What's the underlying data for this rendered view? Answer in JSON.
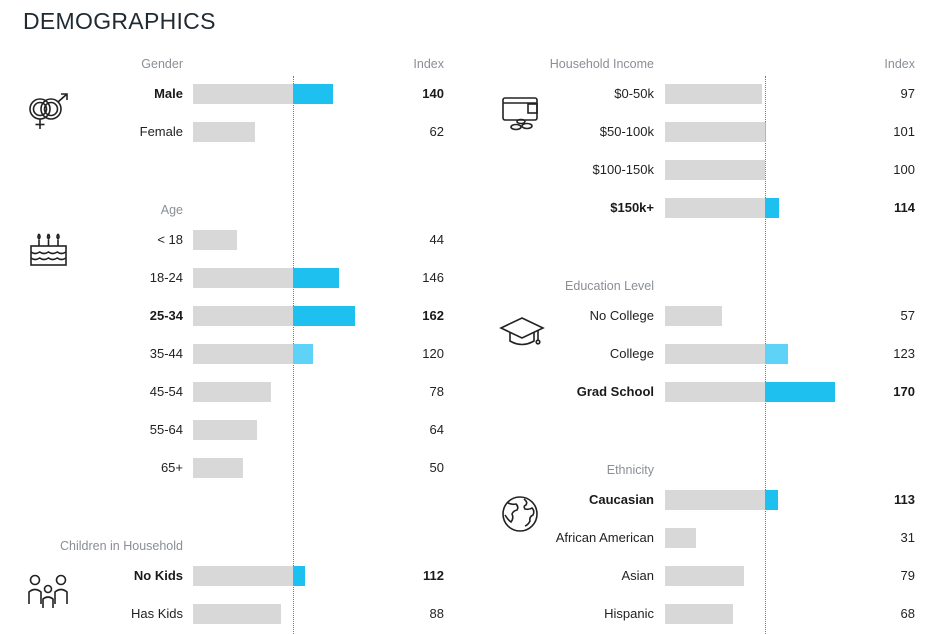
{
  "title": "DEMOGRAPHICS",
  "index_header": "Index",
  "colors": {
    "bar_gray": "#d8d8d8",
    "blue_strong": "#1ec0f0",
    "blue_light": "#5fd3f7",
    "baseline": "#7a7a7a"
  },
  "chart_data": {
    "type": "bar",
    "baseline": 100,
    "groups": [
      {
        "name": "Gender",
        "icon": "gender-icon",
        "rows": [
          {
            "label": "Male",
            "value": 140,
            "bold": true
          },
          {
            "label": "Female",
            "value": 62,
            "bold": false
          }
        ]
      },
      {
        "name": "Age",
        "icon": "birthday-cake-icon",
        "rows": [
          {
            "label": "< 18",
            "value": 44,
            "bold": false
          },
          {
            "label": "18-24",
            "value": 146,
            "bold": false
          },
          {
            "label": "25-34",
            "value": 162,
            "bold": true
          },
          {
            "label": "35-44",
            "value": 120,
            "bold": false
          },
          {
            "label": "45-54",
            "value": 78,
            "bold": false
          },
          {
            "label": "55-64",
            "value": 64,
            "bold": false
          },
          {
            "label": "65+",
            "value": 50,
            "bold": false
          }
        ]
      },
      {
        "name": "Children in Household",
        "icon": "family-icon",
        "rows": [
          {
            "label": "No Kids",
            "value": 112,
            "bold": true
          },
          {
            "label": "Has Kids",
            "value": 88,
            "bold": false
          }
        ]
      },
      {
        "name": "Household Income",
        "icon": "wallet-icon",
        "rows": [
          {
            "label": "$0-50k",
            "value": 97,
            "bold": false
          },
          {
            "label": "$50-100k",
            "value": 101,
            "bold": false
          },
          {
            "label": "$100-150k",
            "value": 100,
            "bold": false
          },
          {
            "label": "$150k+",
            "value": 114,
            "bold": true
          }
        ]
      },
      {
        "name": "Education Level",
        "icon": "graduation-cap-icon",
        "rows": [
          {
            "label": "No College",
            "value": 57,
            "bold": false
          },
          {
            "label": "College",
            "value": 123,
            "bold": false
          },
          {
            "label": "Grad School",
            "value": 170,
            "bold": true
          }
        ]
      },
      {
        "name": "Ethnicity",
        "icon": "globe-icon",
        "rows": [
          {
            "label": "Caucasian",
            "value": 113,
            "bold": true
          },
          {
            "label": "African American",
            "value": 31,
            "bold": false
          },
          {
            "label": "Asian",
            "value": 79,
            "bold": false
          },
          {
            "label": "Hispanic",
            "value": 68,
            "bold": false
          }
        ]
      }
    ]
  }
}
